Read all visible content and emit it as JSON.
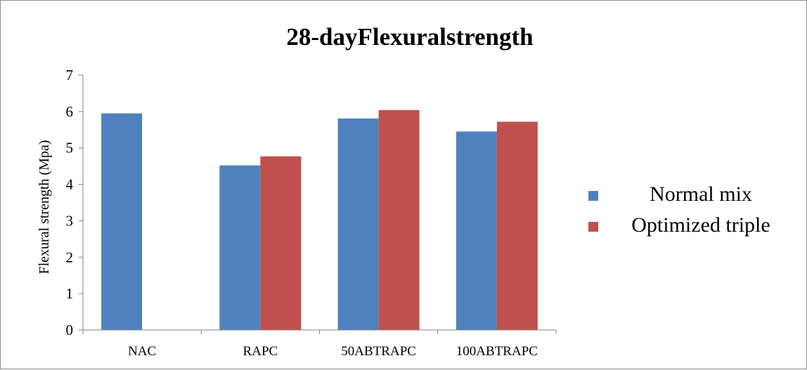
{
  "chart_data": {
    "type": "bar",
    "title": "28-dayFlexuralstrength",
    "xlabel": "",
    "ylabel": "Flexural strength (Mpa)",
    "ylim": [
      0,
      7
    ],
    "yticks": [
      0,
      1,
      2,
      3,
      4,
      5,
      6,
      7
    ],
    "grid": false,
    "legend_position": "right",
    "categories": [
      "NAC",
      "RAPC",
      "50ABTRAPC",
      "100ABTRAPC"
    ],
    "series": [
      {
        "name": "Normal mix",
        "color": "#4f81bd",
        "values": [
          5.95,
          4.52,
          5.81,
          5.45
        ]
      },
      {
        "name": "Optimized triple",
        "color": "#c0504d",
        "values": [
          null,
          4.77,
          6.04,
          5.72
        ]
      }
    ]
  }
}
